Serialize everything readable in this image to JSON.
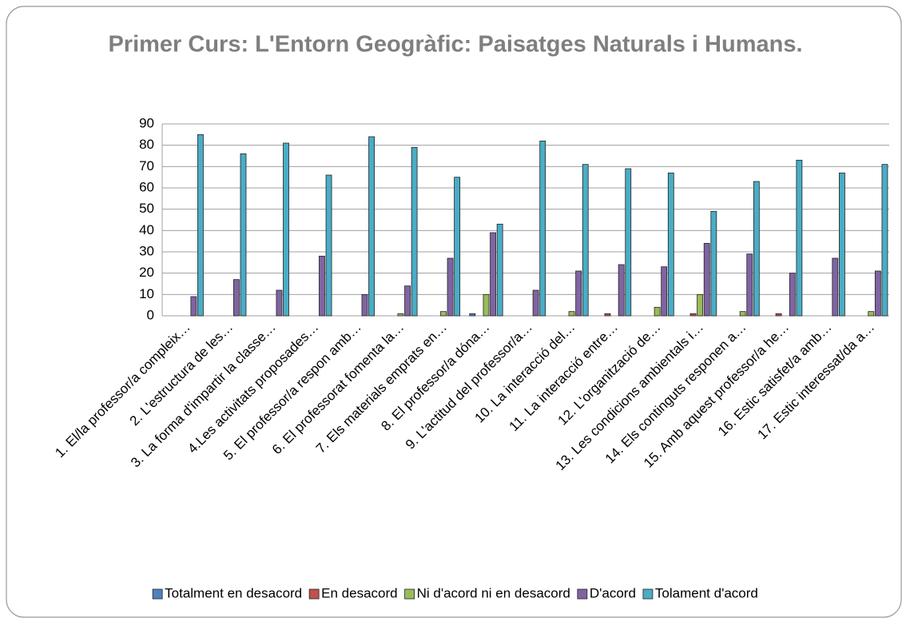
{
  "chart_data": {
    "type": "bar",
    "title": "Primer Curs: L'Entorn Geogràfic: Paisatges Naturals i Humans.",
    "categories": [
      "1. El/la professor/a compleix…",
      "2. L'estructura de les…",
      "3. La forma d'impartir la classe…",
      "4.Les activitats proposades…",
      "5. El professor/a respon amb…",
      "6. El professorat fomenta la…",
      "7. Els materials emprats en…",
      "8. El professor/a dóna…",
      "9. L'actitud del professor/a…",
      "10. La interacció del…",
      "11. La interacció entre…",
      "12. L'organització de…",
      "13. Les condicions ambientals i…",
      "14. Els continguts responen a…",
      "15. Amb aquest professor/a he…",
      "16. Estic satisfet/a amb…",
      "17. Estic interessat/da a…"
    ],
    "series": [
      {
        "name": "Totalment en desacord",
        "color": "#4f81bd",
        "values": [
          0,
          0,
          0,
          0,
          0,
          0,
          0,
          1,
          0,
          0,
          0,
          0,
          0,
          0,
          0,
          0,
          0
        ]
      },
      {
        "name": "En desacord",
        "color": "#c0504d",
        "values": [
          0,
          0,
          0,
          0,
          0,
          0,
          0,
          0,
          0,
          0,
          1,
          0,
          1,
          0,
          1,
          0,
          0
        ]
      },
      {
        "name": "Ni d'acord ni en desacord",
        "color": "#9bbb59",
        "values": [
          0,
          0,
          0,
          0,
          0,
          1,
          2,
          10,
          0,
          2,
          0,
          4,
          10,
          2,
          0,
          0,
          2
        ]
      },
      {
        "name": "D'acord",
        "color": "#8064a2",
        "values": [
          9,
          17,
          12,
          28,
          10,
          14,
          27,
          39,
          12,
          21,
          24,
          23,
          34,
          29,
          20,
          27,
          21
        ]
      },
      {
        "name": "Tolament d'acord",
        "color": "#4bacc6",
        "values": [
          85,
          76,
          81,
          66,
          84,
          79,
          65,
          43,
          82,
          71,
          69,
          67,
          49,
          63,
          73,
          67,
          71
        ]
      }
    ],
    "ylim": [
      0,
      90
    ],
    "yticks": [
      0,
      10,
      20,
      30,
      40,
      50,
      60,
      70,
      80,
      90
    ],
    "grid": true,
    "legend": "bottom"
  }
}
